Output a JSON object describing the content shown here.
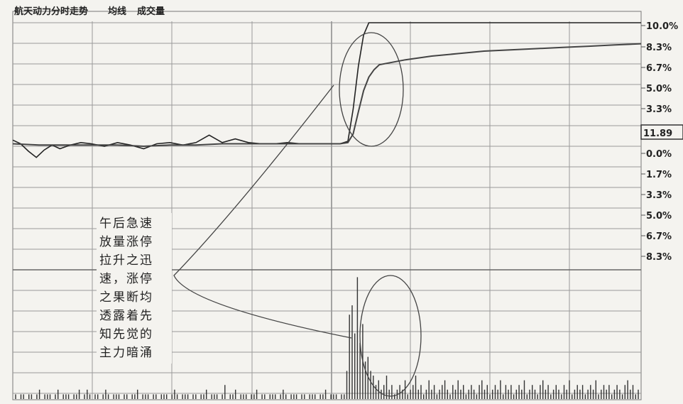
{
  "header": {
    "title": "航天动力分时走势",
    "series_avg": "均线",
    "series_vol": "成交量"
  },
  "price_badge": "11.89",
  "annotation": {
    "lines": [
      "午后急速",
      "放量涨停",
      "拉升之迅",
      "速，涨停",
      "之果断均",
      "透露着先",
      "知先觉的",
      "主力暗涌"
    ]
  },
  "colors": {
    "background": "#f4f3ef",
    "grid": "#9a9a9a",
    "line": "#333333",
    "text": "#222222"
  },
  "chart_data": {
    "type": "line",
    "y_axis_labels": [
      "10.0%",
      "8.3%",
      "6.7%",
      "5.0%",
      "3.3%",
      "0.0%",
      "1.7%",
      "3.3%",
      "5.0%",
      "6.7%",
      "8.3%"
    ],
    "ylim": [
      -10,
      10
    ],
    "x_range": [
      0,
      240
    ],
    "series": [
      {
        "x": [
          0,
          3,
          6,
          9,
          12,
          15,
          18,
          22,
          26,
          30,
          35,
          40,
          45,
          50,
          55,
          60,
          65,
          70,
          75,
          80,
          85,
          90,
          95,
          100,
          105,
          110,
          115,
          120,
          125,
          128,
          130,
          132,
          134,
          136,
          138,
          140,
          145,
          150,
          160,
          170,
          180,
          190,
          200,
          210,
          220,
          230,
          240
        ],
        "values": [
          0.5,
          0.2,
          -0.4,
          -0.9,
          -0.3,
          0.1,
          -0.2,
          0.1,
          0.3,
          0.2,
          0.0,
          0.3,
          0.1,
          -0.2,
          0.2,
          0.3,
          0.1,
          0.3,
          0.9,
          0.3,
          0.6,
          0.3,
          0.2,
          0.2,
          0.3,
          0.2,
          0.2,
          0.2,
          0.2,
          0.4,
          3.0,
          6.5,
          9.0,
          10.5,
          10.5,
          10.5,
          10.5,
          10.5,
          10.5,
          10.5,
          10.5,
          10.5,
          10.5,
          10.5,
          10.5,
          10.5,
          10.5
        ]
      },
      {
        "x": [
          0,
          10,
          20,
          30,
          40,
          50,
          60,
          70,
          80,
          90,
          100,
          110,
          120,
          125,
          128,
          130,
          132,
          134,
          136,
          138,
          140,
          145,
          150,
          160,
          170,
          180,
          190,
          200,
          210,
          220,
          230,
          240
        ],
        "values": [
          0.2,
          0.1,
          0.1,
          0.1,
          0.1,
          0.0,
          0.1,
          0.1,
          0.2,
          0.2,
          0.2,
          0.2,
          0.2,
          0.2,
          0.3,
          1.0,
          2.8,
          4.5,
          5.6,
          6.2,
          6.6,
          6.8,
          7.0,
          7.3,
          7.5,
          7.7,
          7.8,
          7.9,
          8.0,
          8.1,
          8.2,
          8.3
        ]
      }
    ],
    "volume": [
      1,
      0,
      1,
      1,
      0,
      1,
      1,
      0,
      1,
      2,
      0,
      1,
      1,
      1,
      0,
      1,
      2,
      0,
      1,
      1,
      1,
      0,
      1,
      1,
      2,
      0,
      1,
      2,
      1,
      0,
      1,
      1,
      0,
      1,
      2,
      1,
      0,
      1,
      1,
      1,
      0,
      1,
      1,
      0,
      1,
      1,
      2,
      0,
      1,
      1,
      1,
      0,
      1,
      1,
      0,
      1,
      1,
      1,
      0,
      1,
      2,
      1,
      0,
      1,
      1,
      1,
      0,
      1,
      1,
      0,
      1,
      1,
      2,
      0,
      1,
      1,
      1,
      0,
      1,
      3,
      0,
      1,
      1,
      2,
      0,
      1,
      1,
      1,
      0,
      1,
      1,
      2,
      0,
      1,
      1,
      0,
      1,
      1,
      1,
      0,
      1,
      2,
      1,
      0,
      1,
      1,
      1,
      0,
      1,
      1,
      0,
      1,
      1,
      1,
      0,
      1,
      1,
      2,
      0,
      1,
      1,
      1,
      0,
      1,
      1,
      6,
      18,
      20,
      14,
      26,
      12,
      16,
      8,
      9,
      6,
      5,
      3,
      4,
      2,
      3,
      5,
      2,
      3,
      1,
      2,
      3,
      2,
      4,
      1,
      2,
      3,
      5,
      2,
      3,
      1,
      2,
      4,
      2,
      3,
      1,
      2,
      3,
      4,
      2,
      1,
      3,
      2,
      4,
      2,
      3,
      1,
      2,
      3,
      2,
      1,
      3,
      4,
      2,
      3,
      1,
      2,
      3,
      2,
      4,
      1,
      3,
      2,
      3,
      1,
      2,
      3,
      2,
      4,
      1,
      2,
      3,
      2,
      1,
      3,
      4,
      2,
      3,
      1,
      2,
      3,
      2,
      1,
      3,
      2,
      4,
      1,
      2,
      3,
      2,
      3,
      1,
      2,
      3,
      2,
      4,
      1,
      2,
      3,
      2,
      3,
      1,
      2,
      3,
      2,
      1,
      3,
      4,
      2,
      3,
      1,
      2
    ]
  }
}
